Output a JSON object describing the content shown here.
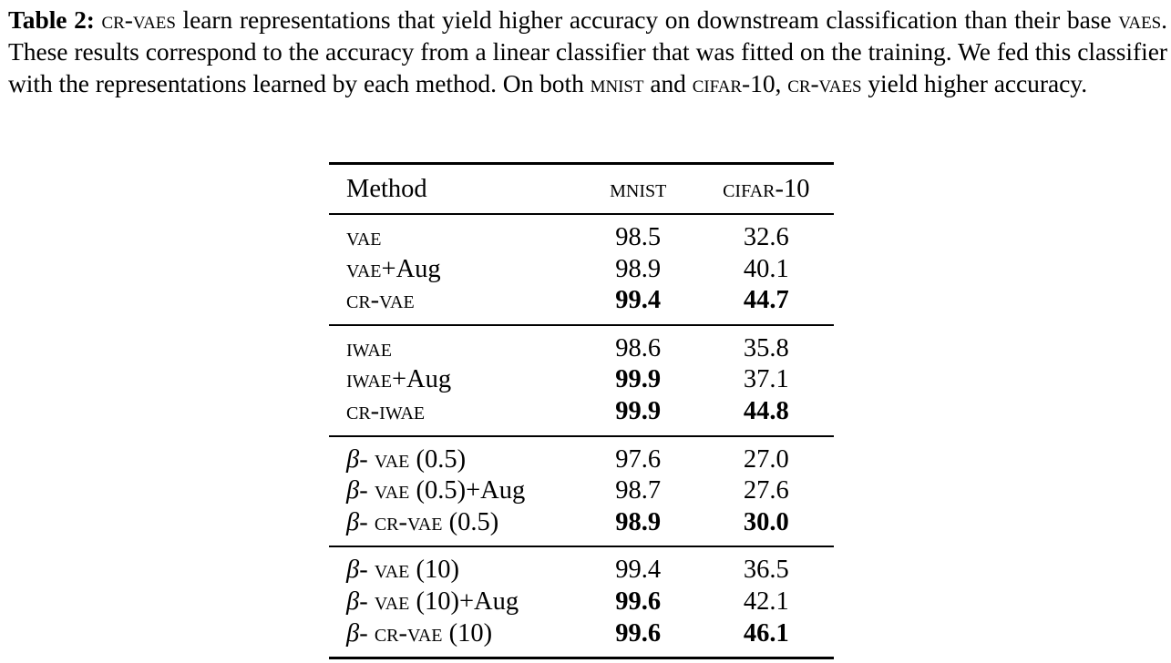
{
  "caption": {
    "label": "Table 2:",
    "parts": [
      {
        "text": " ",
        "sc": false
      },
      {
        "text": "cr-vaes",
        "sc": true
      },
      {
        "text": " learn representations that yield higher accuracy on downstream classification than their base ",
        "sc": false
      },
      {
        "text": "vaes",
        "sc": true
      },
      {
        "text": ". These results correspond to the accuracy from a linear classifier that was fitted on the training. We fed this classifier with the representations learned by each method. On both ",
        "sc": false
      },
      {
        "text": "mnist",
        "sc": true
      },
      {
        "text": " and ",
        "sc": false
      },
      {
        "text": "cifar",
        "sc": true
      },
      {
        "text": "-10, ",
        "sc": false
      },
      {
        "text": "cr-vaes",
        "sc": true
      },
      {
        "text": " yield higher accuracy.",
        "sc": false
      }
    ]
  },
  "table": {
    "headers": [
      {
        "parts": [
          {
            "text": "Method",
            "sc": false
          }
        ]
      },
      {
        "parts": [
          {
            "text": "mnist",
            "sc": true
          }
        ]
      },
      {
        "parts": [
          {
            "text": "cifar",
            "sc": true
          },
          {
            "text": "-10",
            "sc": false
          }
        ]
      }
    ],
    "groups": [
      {
        "rows": [
          {
            "method": [
              {
                "text": "vae",
                "sc": true
              }
            ],
            "mnist": "98.5",
            "mnist_bold": false,
            "cifar": "32.6",
            "cifar_bold": false
          },
          {
            "method": [
              {
                "text": "vae",
                "sc": true
              },
              {
                "text": "+Aug",
                "sc": false
              }
            ],
            "mnist": "98.9",
            "mnist_bold": false,
            "cifar": "40.1",
            "cifar_bold": false
          },
          {
            "method": [
              {
                "text": "cr-vae",
                "sc": true
              }
            ],
            "mnist": "99.4",
            "mnist_bold": true,
            "cifar": "44.7",
            "cifar_bold": true
          }
        ]
      },
      {
        "rows": [
          {
            "method": [
              {
                "text": "iwae",
                "sc": true
              }
            ],
            "mnist": "98.6",
            "mnist_bold": false,
            "cifar": "35.8",
            "cifar_bold": false
          },
          {
            "method": [
              {
                "text": "iwae",
                "sc": true
              },
              {
                "text": "+Aug",
                "sc": false
              }
            ],
            "mnist": "99.9",
            "mnist_bold": true,
            "cifar": "37.1",
            "cifar_bold": false
          },
          {
            "method": [
              {
                "text": "cr-iwae",
                "sc": true
              }
            ],
            "mnist": "99.9",
            "mnist_bold": true,
            "cifar": "44.8",
            "cifar_bold": true
          }
        ]
      },
      {
        "rows": [
          {
            "method": [
              {
                "text": "β",
                "beta": true
              },
              {
                "text": "- ",
                "sc": false
              },
              {
                "text": "vae",
                "sc": true
              },
              {
                "text": " (0.5)",
                "sc": false
              }
            ],
            "mnist": "97.6",
            "mnist_bold": false,
            "cifar": "27.0",
            "cifar_bold": false
          },
          {
            "method": [
              {
                "text": "β",
                "beta": true
              },
              {
                "text": "- ",
                "sc": false
              },
              {
                "text": "vae",
                "sc": true
              },
              {
                "text": " (0.5)+Aug",
                "sc": false
              }
            ],
            "mnist": "98.7",
            "mnist_bold": false,
            "cifar": "27.6",
            "cifar_bold": false
          },
          {
            "method": [
              {
                "text": "β",
                "beta": true
              },
              {
                "text": "- ",
                "sc": false
              },
              {
                "text": "cr-vae",
                "sc": true
              },
              {
                "text": " (0.5)",
                "sc": false
              }
            ],
            "mnist": "98.9",
            "mnist_bold": true,
            "cifar": "30.0",
            "cifar_bold": true
          }
        ]
      },
      {
        "rows": [
          {
            "method": [
              {
                "text": "β",
                "beta": true
              },
              {
                "text": "- ",
                "sc": false
              },
              {
                "text": "vae",
                "sc": true
              },
              {
                "text": " (10)",
                "sc": false
              }
            ],
            "mnist": "99.4",
            "mnist_bold": false,
            "cifar": "36.5",
            "cifar_bold": false
          },
          {
            "method": [
              {
                "text": "β",
                "beta": true
              },
              {
                "text": "- ",
                "sc": false
              },
              {
                "text": "vae",
                "sc": true
              },
              {
                "text": " (10)+Aug",
                "sc": false
              }
            ],
            "mnist": "99.6",
            "mnist_bold": true,
            "cifar": "42.1",
            "cifar_bold": false
          },
          {
            "method": [
              {
                "text": "β",
                "beta": true
              },
              {
                "text": "- ",
                "sc": false
              },
              {
                "text": "cr-vae",
                "sc": true
              },
              {
                "text": " (10)",
                "sc": false
              }
            ],
            "mnist": "99.6",
            "mnist_bold": true,
            "cifar": "46.1",
            "cifar_bold": true
          }
        ]
      }
    ]
  }
}
